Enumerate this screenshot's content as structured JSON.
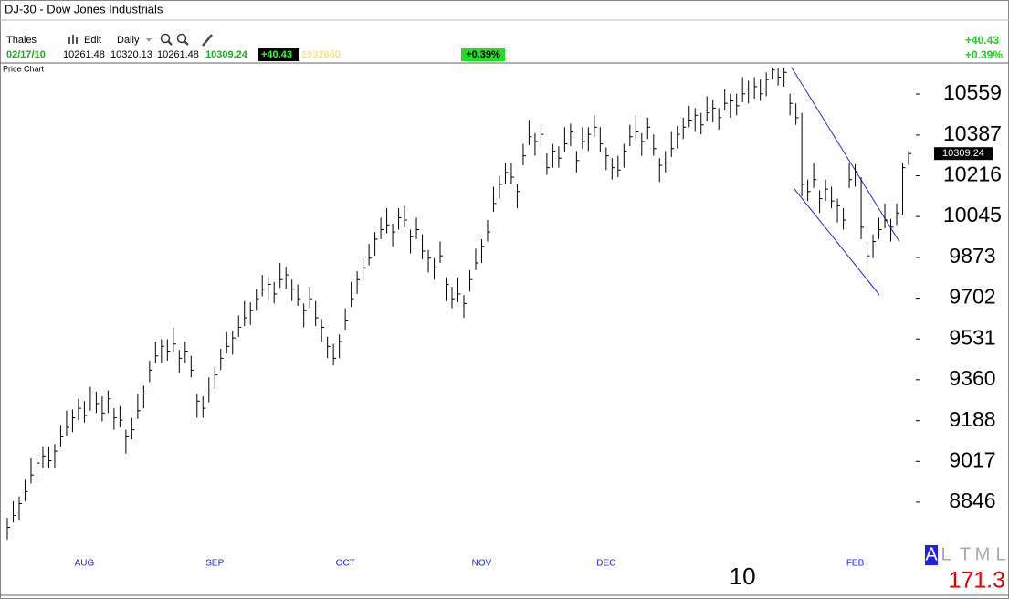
{
  "window_title": "DJ-30 - Dow Jones Industrials",
  "toolbar": {
    "account": "Thales",
    "edit": "Edit",
    "interval": "Daily",
    "change": "+40.43",
    "change_pct": "+0.39%"
  },
  "quote": {
    "date": "02/17/10",
    "open": 10261.48,
    "change": "+40.43",
    "volume": 1932660,
    "change_pct": "+0.39%"
  },
  "panel_label": "Price Chart",
  "scale_buttons": [
    "A",
    "L",
    "T",
    "M",
    "L"
  ],
  "scale_step": "171.3",
  "chart_data": {
    "type": "ohlc",
    "color": "#000000",
    "ylim": [
      8654,
      10678
    ],
    "yticks": [
      10559,
      10387,
      10216,
      10045,
      9873,
      9702,
      9531,
      9360,
      9188,
      9017,
      8846
    ],
    "xlim": [
      0,
      152
    ],
    "xticks": [
      {
        "value": 13,
        "label": "AUG"
      },
      {
        "value": 35,
        "label": "SEP"
      },
      {
        "value": 57,
        "label": "OCT"
      },
      {
        "value": 80,
        "label": "NOV"
      },
      {
        "value": 101,
        "label": "DEC"
      },
      {
        "value": 124,
        "label": "10"
      },
      {
        "value": 143,
        "label": "FEB"
      }
    ],
    "high": [
      8780,
      8850,
      8870,
      8940,
      9030,
      9045,
      9080,
      9080,
      9090,
      9170,
      9230,
      9235,
      9280,
      9270,
      9330,
      9310,
      9290,
      9315,
      9240,
      9250,
      9150,
      9200,
      9300,
      9335,
      9440,
      9520,
      9530,
      9530,
      9580,
      9485,
      9520,
      9460,
      9300,
      9290,
      9370,
      9415,
      9490,
      9560,
      9565,
      9630,
      9690,
      9685,
      9740,
      9800,
      9790,
      9770,
      9850,
      9835,
      9780,
      9760,
      9680,
      9750,
      9690,
      9615,
      9540,
      9510,
      9550,
      9660,
      9770,
      9815,
      9870,
      9930,
      9980,
      10040,
      10080,
      10015,
      10080,
      10090,
      9990,
      10040,
      9970,
      9905,
      9870,
      9940,
      9790,
      9750,
      9790,
      9715,
      9820,
      9910,
      9950,
      10030,
      10170,
      10215,
      10270,
      10270,
      10180,
      10350,
      10450,
      10395,
      10430,
      10310,
      10350,
      10340,
      10420,
      10435,
      10320,
      10420,
      10420,
      10470,
      10420,
      10335,
      10290,
      10300,
      10350,
      10430,
      10470,
      10395,
      10460,
      10390,
      10290,
      10320,
      10400,
      10425,
      10460,
      10510,
      10500,
      10480,
      10550,
      10535,
      10500,
      10580,
      10560,
      10560,
      10630,
      10615,
      10630,
      10620,
      10650,
      10670,
      10670,
      10670,
      10560,
      10520,
      10480,
      10200,
      10270,
      10155,
      10200,
      10170,
      10120,
      10080,
      10270,
      10265,
      10210,
      9940,
      9970,
      10040,
      10100,
      10035,
      10100,
      10270,
      10320.13
    ],
    "low": [
      8690,
      8760,
      8770,
      8850,
      8925,
      8950,
      8990,
      8990,
      8990,
      9080,
      9125,
      9140,
      9190,
      9180,
      9230,
      9220,
      9185,
      9220,
      9150,
      9160,
      9050,
      9110,
      9195,
      9240,
      9350,
      9430,
      9430,
      9440,
      9475,
      9390,
      9430,
      9370,
      9200,
      9200,
      9265,
      9320,
      9400,
      9470,
      9465,
      9540,
      9585,
      9590,
      9650,
      9710,
      9690,
      9680,
      9745,
      9740,
      9690,
      9670,
      9580,
      9660,
      9585,
      9520,
      9450,
      9420,
      9450,
      9570,
      9665,
      9720,
      9780,
      9840,
      9880,
      9950,
      9975,
      9920,
      9990,
      10000,
      9890,
      9950,
      9865,
      9810,
      9780,
      9850,
      9690,
      9660,
      9685,
      9620,
      9730,
      9820,
      9850,
      9940,
      10065,
      10120,
      10180,
      10180,
      10080,
      10260,
      10345,
      10300,
      10340,
      10220,
      10250,
      10250,
      10315,
      10340,
      10230,
      10330,
      10320,
      10380,
      10315,
      10240,
      10200,
      10210,
      10250,
      10340,
      10365,
      10300,
      10370,
      10300,
      10190,
      10230,
      10295,
      10330,
      10370,
      10420,
      10400,
      10390,
      10445,
      10440,
      10410,
      10490,
      10460,
      10470,
      10525,
      10520,
      10540,
      10530,
      10550,
      10620,
      10595,
      10590,
      10470,
      10430,
      10130,
      10110,
      10165,
      10060,
      10110,
      10080,
      10020,
      9990,
      10165,
      10170,
      9950,
      9800,
      9870,
      9950,
      9995,
      9940,
      10010,
      10050,
      10261.48
    ],
    "close": [
      8740,
      8790,
      8840,
      8890,
      8960,
      9010,
      9040,
      9020,
      9060,
      9120,
      9160,
      9200,
      9240,
      9210,
      9300,
      9260,
      9220,
      9280,
      9200,
      9190,
      9120,
      9150,
      9230,
      9300,
      9400,
      9460,
      9500,
      9480,
      9510,
      9450,
      9480,
      9400,
      9270,
      9240,
      9300,
      9380,
      9450,
      9500,
      9535,
      9580,
      9620,
      9650,
      9700,
      9740,
      9760,
      9720,
      9780,
      9800,
      9740,
      9700,
      9650,
      9700,
      9620,
      9580,
      9500,
      9450,
      9520,
      9610,
      9700,
      9780,
      9830,
      9870,
      9950,
      9990,
      10010,
      9980,
      10040,
      10030,
      9960,
      9990,
      9900,
      9870,
      9830,
      9880,
      9760,
      9700,
      9720,
      9680,
      9780,
      9850,
      9920,
      9980,
      10100,
      10180,
      10230,
      10210,
      10150,
      10300,
      10380,
      10360,
      10390,
      10250,
      10320,
      10290,
      10350,
      10400,
      10280,
      10360,
      10390,
      10420,
      10350,
      10300,
      10250,
      10240,
      10320,
      10380,
      10400,
      10360,
      10420,
      10330,
      10260,
      10270,
      10330,
      10390,
      10420,
      10450,
      10470,
      10430,
      10480,
      10500,
      10460,
      10520,
      10530,
      10510,
      10560,
      10580,
      10590,
      10560,
      10620,
      10660,
      10630,
      10650,
      10520,
      10460,
      10180,
      10150,
      10200,
      10120,
      10160,
      10110,
      10090,
      10030,
      10200,
      10230,
      10000,
      9880,
      9940,
      9990,
      10030,
      10000,
      10060,
      10250,
      10309.24
    ]
  }
}
